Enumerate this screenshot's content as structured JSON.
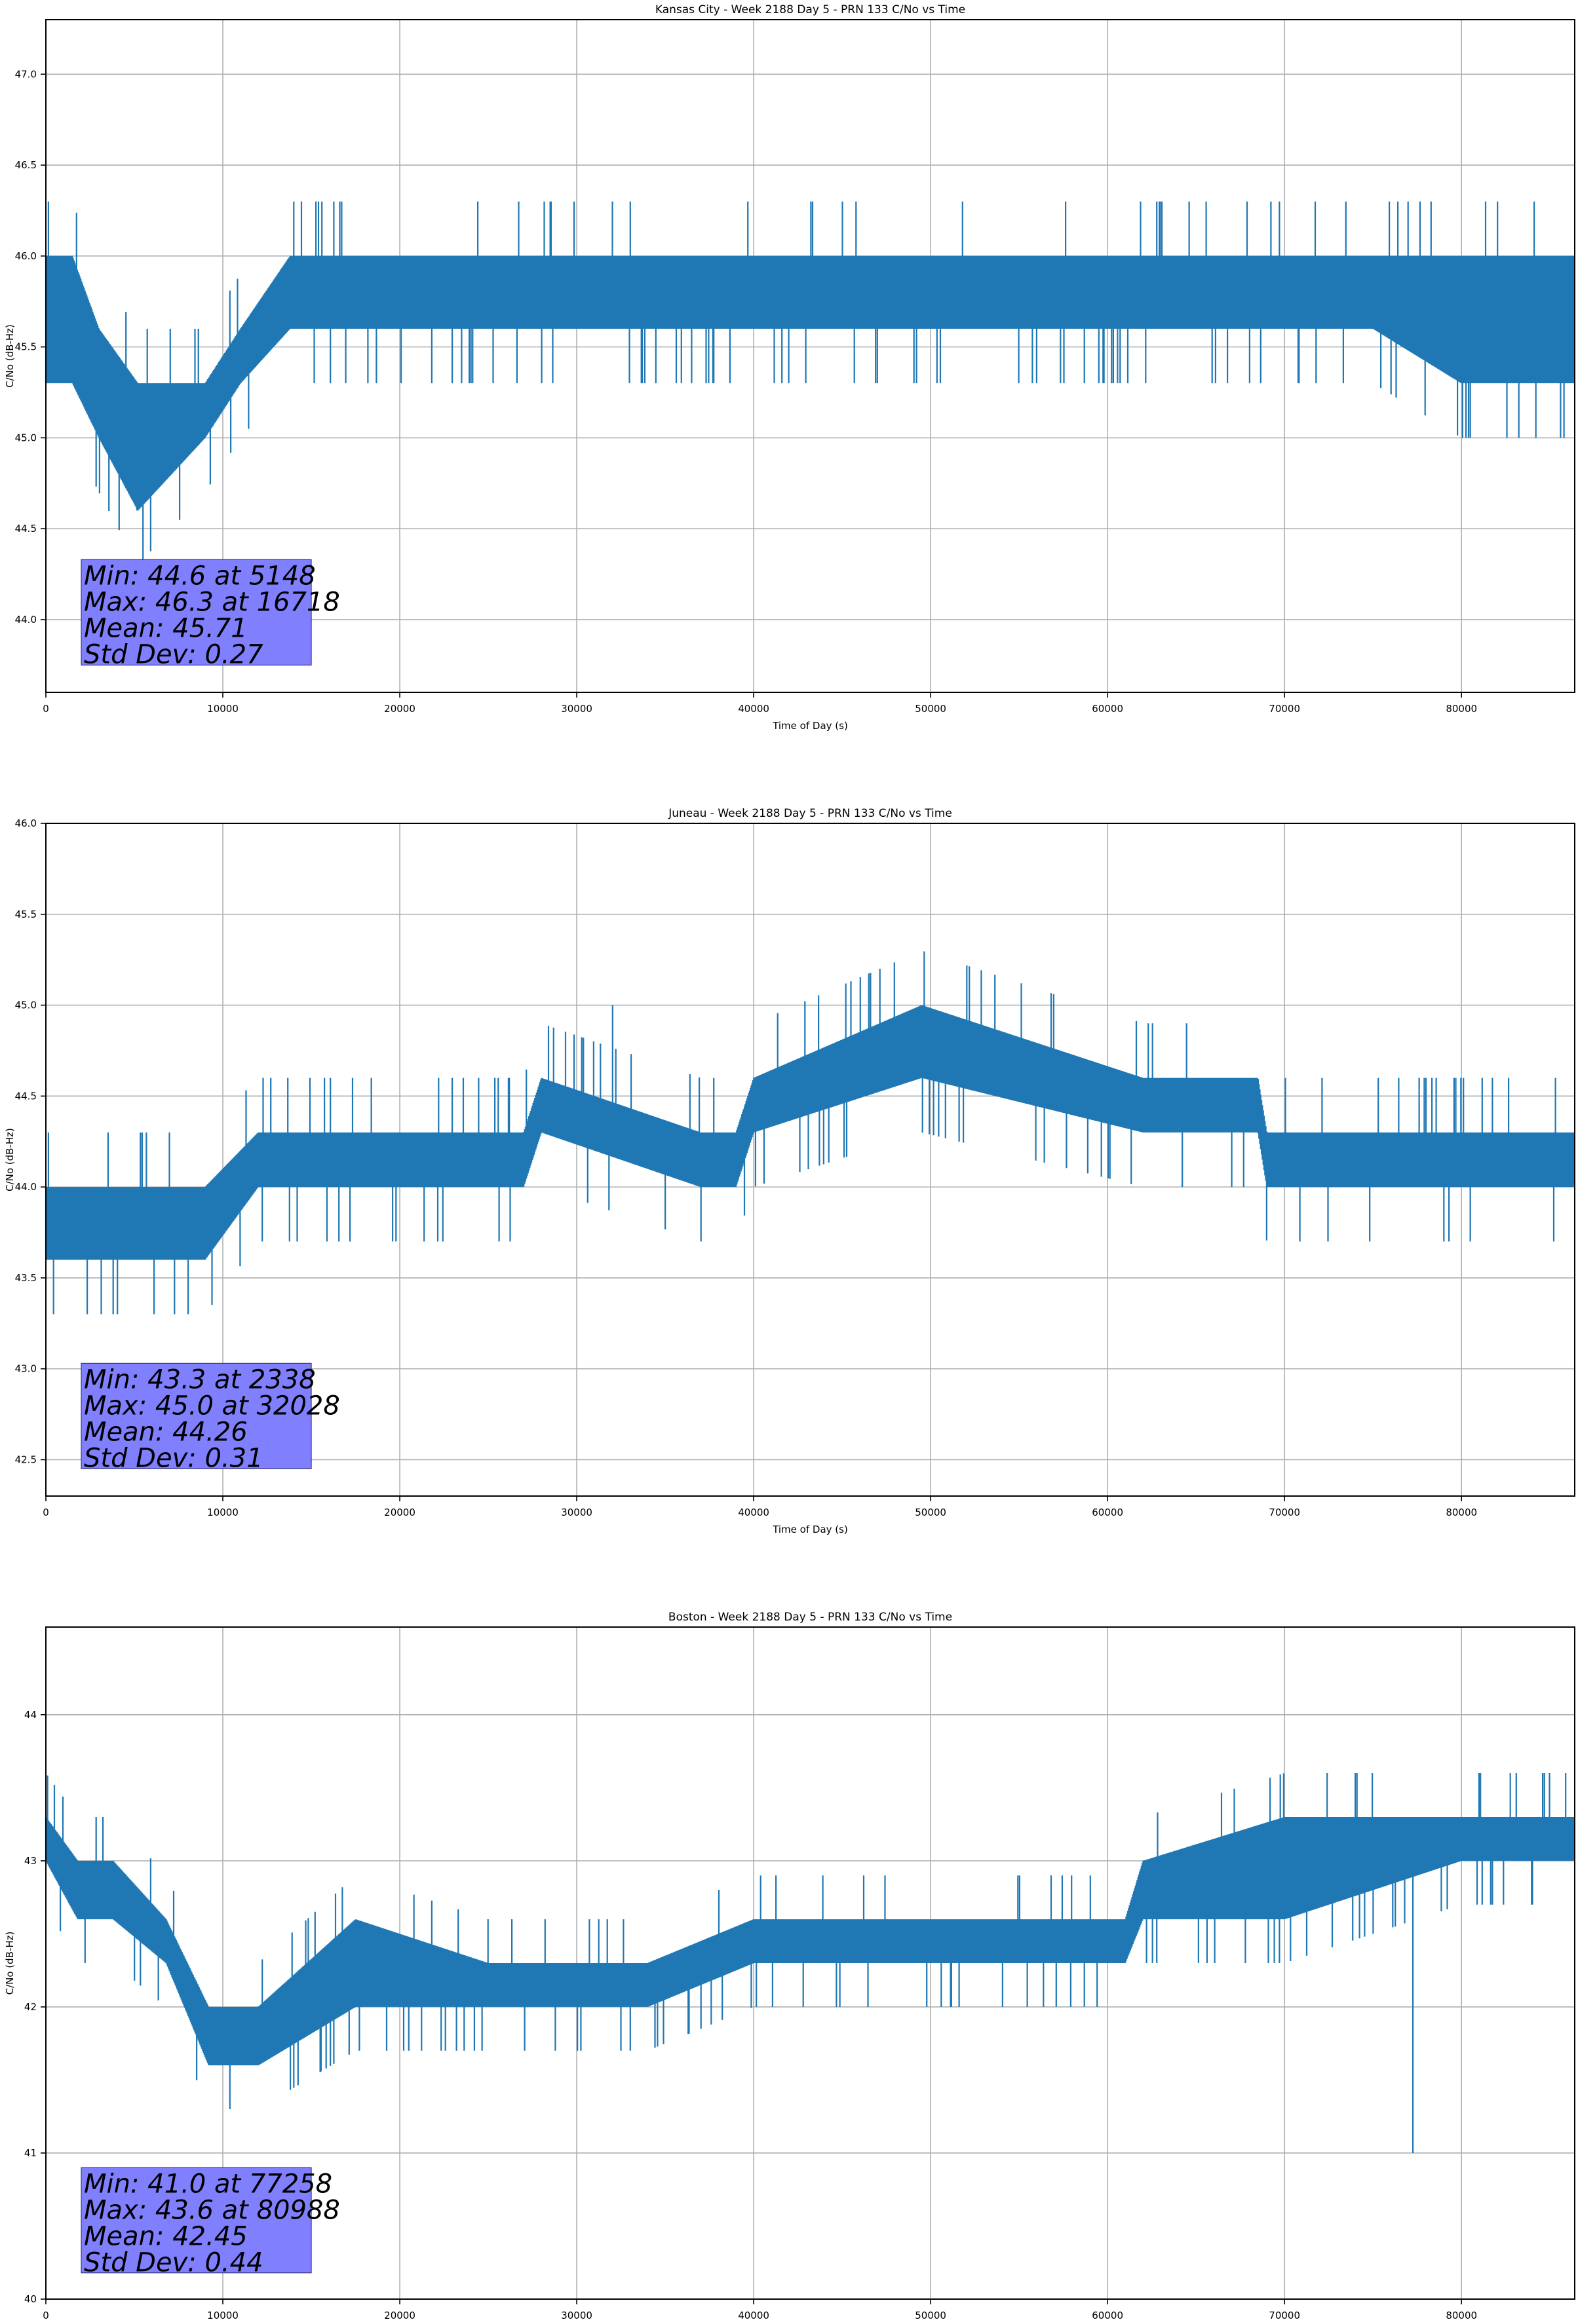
{
  "figure": {
    "charts_meta": "three stacked line plots"
  },
  "chart_data": [
    {
      "type": "line",
      "title": "Kansas City - Week 2188 Day 5 - PRN 133 C/No vs Time",
      "xlabel": "Time of Day (s)",
      "ylabel": "C/No (dB-Hz)",
      "xlim": [
        0,
        86400
      ],
      "ylim": [
        43.6,
        47.3
      ],
      "xticks": [
        0,
        10000,
        20000,
        30000,
        40000,
        50000,
        60000,
        70000,
        80000
      ],
      "yticks": [
        44.0,
        44.5,
        45.0,
        45.5,
        46.0,
        46.5,
        47.0
      ],
      "ytick_decimals": 1,
      "grid": true,
      "series_color": "#1f77b4",
      "stats_box": {
        "lines": [
          "Min: 44.6 at 5148",
          "Max: 46.3 at 16718",
          "Mean: 45.71",
          "Std Dev: 0.27"
        ],
        "facecolor": "#8080ff",
        "x_range": [
          2000,
          15000
        ],
        "y_range": [
          43.75,
          44.33
        ]
      },
      "series": [
        {
          "values_x": [
            0,
            1500,
            3000,
            5200,
            9000,
            11000,
            13800,
            16700,
            20000,
            30000,
            40000,
            48000,
            51000,
            60000,
            70000,
            75000,
            80000,
            86400
          ],
          "band_low": [
            45.3,
            45.3,
            45.0,
            44.6,
            45.0,
            45.3,
            45.6,
            45.6,
            45.6,
            45.6,
            45.6,
            45.6,
            45.6,
            45.6,
            45.6,
            45.6,
            45.3,
            45.3
          ],
          "band_high": [
            46.0,
            46.0,
            45.6,
            45.3,
            45.3,
            45.6,
            46.0,
            46.0,
            46.0,
            46.0,
            46.0,
            46.0,
            46.0,
            46.0,
            46.0,
            46.0,
            46.0,
            46.0
          ],
          "min_x": 5148,
          "min_y": 44.6,
          "max_x": 16718,
          "max_y": 46.3
        }
      ]
    },
    {
      "type": "line",
      "title": "Juneau - Week 2188 Day 5 - PRN 133 C/No vs Time",
      "xlabel": "Time of Day (s)",
      "ylabel": "C/No (dB-Hz)",
      "xlim": [
        0,
        86400
      ],
      "ylim": [
        42.3,
        46.0
      ],
      "xticks": [
        0,
        10000,
        20000,
        30000,
        40000,
        50000,
        60000,
        70000,
        80000
      ],
      "yticks": [
        42.5,
        43.0,
        43.5,
        44.0,
        44.5,
        45.0,
        45.5,
        46.0
      ],
      "ytick_decimals": 1,
      "grid": true,
      "series_color": "#1f77b4",
      "stats_box": {
        "lines": [
          "Min: 43.3 at 2338",
          "Max: 45.0 at 32028",
          "Mean: 44.26",
          "Std Dev: 0.31"
        ],
        "facecolor": "#8080ff",
        "x_range": [
          2000,
          15000
        ],
        "y_range": [
          42.45,
          43.03
        ]
      },
      "series": [
        {
          "values_x": [
            0,
            2300,
            5000,
            9000,
            12000,
            17000,
            22000,
            27000,
            28000,
            37000,
            39000,
            40000,
            49500,
            62000,
            68500,
            69000,
            78000,
            86400
          ],
          "band_low": [
            43.6,
            43.6,
            43.6,
            43.6,
            44.0,
            44.0,
            44.0,
            44.0,
            44.3,
            44.0,
            44.0,
            44.3,
            44.6,
            44.3,
            44.3,
            44.0,
            44.0,
            44.0
          ],
          "band_high": [
            44.0,
            44.0,
            44.0,
            44.0,
            44.3,
            44.3,
            44.3,
            44.3,
            44.6,
            44.3,
            44.3,
            44.6,
            45.0,
            44.6,
            44.6,
            44.3,
            44.3,
            44.3
          ],
          "min_x": 2338,
          "min_y": 43.3,
          "max_x": 32028,
          "max_y": 45.0
        }
      ]
    },
    {
      "type": "line",
      "title": "Boston - Week 2188 Day 5 - PRN 133 C/No vs Time",
      "xlabel": "Time of Day (s)",
      "ylabel": "C/No (dB-Hz)",
      "xlim": [
        0,
        86400
      ],
      "ylim": [
        40.0,
        44.6
      ],
      "xticks": [
        0,
        10000,
        20000,
        30000,
        40000,
        50000,
        60000,
        70000,
        80000
      ],
      "yticks": [
        40,
        41,
        42,
        43,
        44
      ],
      "ytick_decimals": 0,
      "grid": true,
      "series_color": "#1f77b4",
      "stats_box": {
        "lines": [
          "Min: 41.0 at 77258",
          "Max: 43.6 at 80988",
          "Mean: 42.45",
          "Std Dev: 0.44"
        ],
        "facecolor": "#8080ff",
        "x_range": [
          2000,
          15000
        ],
        "y_range": [
          40.18,
          40.9
        ]
      },
      "series": [
        {
          "values_x": [
            0,
            1800,
            3800,
            6800,
            9200,
            12000,
            17500,
            25000,
            34000,
            40000,
            50000,
            61000,
            62000,
            70000,
            80000,
            86400
          ],
          "band_low": [
            43.0,
            42.6,
            42.6,
            42.3,
            41.6,
            41.6,
            42.0,
            42.0,
            42.0,
            42.3,
            42.3,
            42.3,
            42.6,
            42.6,
            43.0,
            43.0
          ],
          "band_high": [
            43.3,
            43.0,
            43.0,
            42.6,
            42.0,
            42.0,
            42.6,
            42.3,
            42.3,
            42.6,
            42.6,
            42.6,
            43.0,
            43.3,
            43.3,
            43.3
          ],
          "min_x": 77258,
          "min_y": 41.0,
          "max_x": 80988,
          "max_y": 43.6
        }
      ]
    }
  ]
}
